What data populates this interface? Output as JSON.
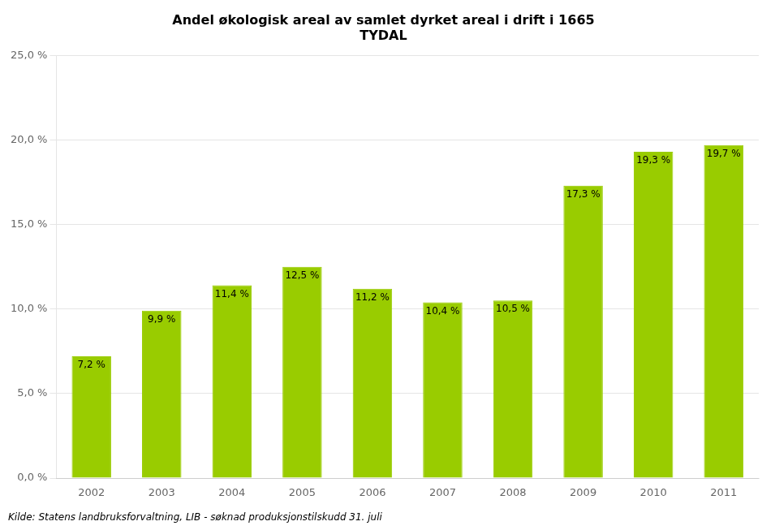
{
  "chart_data": {
    "type": "bar",
    "title": "Andel økologisk areal av samlet dyrket areal i drift i 1665\nTYDAL",
    "caption": "Kilde: Statens landbruksforvaltning, LIB - søknad produksjonstilskudd 31. juli",
    "categories": [
      "2002",
      "2003",
      "2004",
      "2005",
      "2006",
      "2007",
      "2008",
      "2009",
      "2010",
      "2011"
    ],
    "values": [
      7.2,
      9.9,
      11.4,
      12.5,
      11.2,
      10.4,
      10.5,
      17.3,
      19.3,
      19.7
    ],
    "value_labels": [
      "7,2 %",
      "9,9 %",
      "11,4 %",
      "12,5 %",
      "11,2 %",
      "10,4 %",
      "10,5 %",
      "17,3 %",
      "19,3 %",
      "19,7 %"
    ],
    "data_labels": true,
    "color": "#99cc00",
    "ylim": [
      0,
      25
    ],
    "yticks": [
      {
        "value": 0,
        "label": "0,0 %"
      },
      {
        "value": 5,
        "label": "5,0 %"
      },
      {
        "value": 10,
        "label": "10,0 %"
      },
      {
        "value": 15,
        "label": "15,0 %"
      },
      {
        "value": 20,
        "label": "20,0 %"
      },
      {
        "value": 25,
        "label": "25,0 %"
      }
    ],
    "grid": true
  }
}
